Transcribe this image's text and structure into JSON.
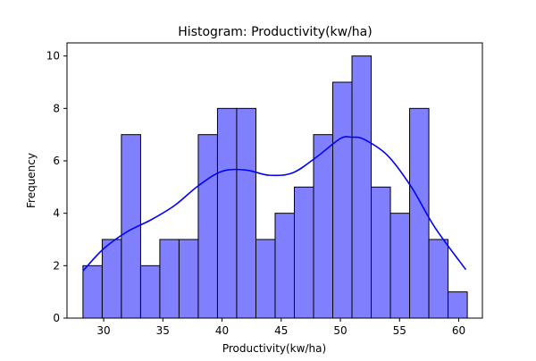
{
  "chart_data": {
    "type": "bar",
    "title": "Histogram: Productivity(kw/ha)",
    "xlabel": "Productivity(kw/ha)",
    "ylabel": "Frequency",
    "xlim": [
      26.9,
      62.0
    ],
    "ylim": [
      0,
      10.5
    ],
    "xticks": [
      30,
      35,
      40,
      45,
      50,
      55,
      60
    ],
    "yticks": [
      0,
      2,
      4,
      6,
      8,
      10
    ],
    "bin_start": 28.25,
    "bin_width": 1.6236,
    "values": [
      2,
      3,
      7,
      2,
      3,
      3,
      7,
      8,
      8,
      3,
      4,
      5,
      7,
      9,
      10,
      5,
      4,
      8,
      3,
      1
    ],
    "kde": {
      "x": [
        28.25,
        30,
        32,
        34,
        36,
        38,
        40,
        42,
        44,
        46,
        48,
        50,
        51,
        52,
        54,
        56,
        58,
        60.6
      ],
      "y": [
        1.8,
        2.65,
        3.3,
        3.75,
        4.3,
        5.05,
        5.6,
        5.65,
        5.45,
        5.55,
        6.15,
        6.85,
        6.9,
        6.82,
        6.2,
        5.0,
        3.45,
        1.85
      ]
    },
    "bar_color": "#8080ff",
    "bar_edge_color": "#000000",
    "kde_color": "#0000ff"
  }
}
